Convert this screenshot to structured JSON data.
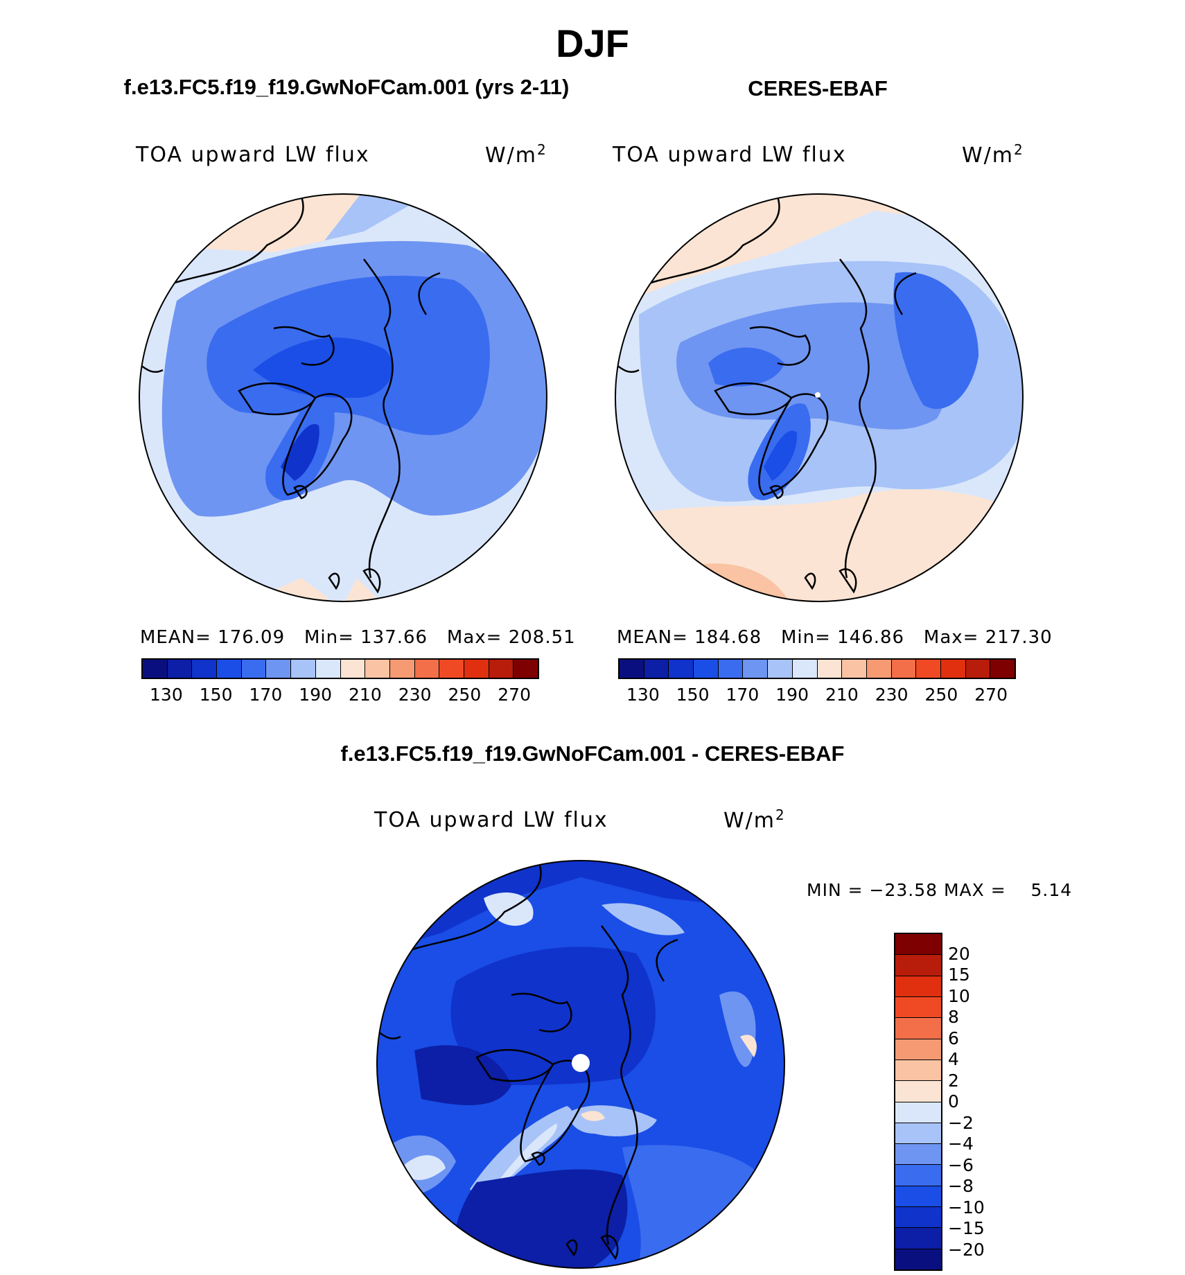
{
  "figure": {
    "title": "DJF",
    "units": "W/m",
    "units_sup": "2"
  },
  "panels": [
    {
      "id": "model",
      "header": "f.e13.FC5.f19_f19.GwNoFCam.001 (yrs 2-11)",
      "variable": "TOA upward LW flux",
      "stats": {
        "mean_label": "MEAN=",
        "mean": "176.09",
        "min_label": "Min=",
        "min": "137.66",
        "max_label": "Max=",
        "max": "208.51"
      }
    },
    {
      "id": "obs",
      "header": "CERES-EBAF",
      "variable": "TOA upward LW flux",
      "stats": {
        "mean_label": "MEAN=",
        "mean": "184.68",
        "min_label": "Min=",
        "min": "146.86",
        "max_label": "Max=",
        "max": "217.30"
      }
    }
  ],
  "diff_panel": {
    "header": "f.e13.FC5.f19_f19.GwNoFCam.001 - CERES-EBAF",
    "variable": "TOA upward LW flux",
    "min_label": "MIN =",
    "min": "−23.58",
    "max_label": "MAX =",
    "max": "5.14"
  },
  "colorbar_abs": {
    "colors": [
      "#0a0f80",
      "#0c1fa6",
      "#1033cc",
      "#1a4ee6",
      "#3a6cf0",
      "#6f95f2",
      "#a8c3f7",
      "#dae7fb",
      "#fbe4d3",
      "#f9c3a4",
      "#f59a73",
      "#f26f49",
      "#f04a24",
      "#e0300f",
      "#b81c0a",
      "#7f0000"
    ],
    "tick_labels": [
      "130",
      "150",
      "170",
      "190",
      "210",
      "230",
      "250",
      "270"
    ]
  },
  "colorbar_diff": {
    "colors": [
      "#7f0000",
      "#b81c0a",
      "#e0300f",
      "#f04a24",
      "#f26f49",
      "#f59a73",
      "#f9c3a4",
      "#fbe4d3",
      "#dae7fb",
      "#a8c3f7",
      "#6f95f2",
      "#3a6cf0",
      "#1a4ee6",
      "#1033cc",
      "#0c1fa6",
      "#0a0f80"
    ],
    "tick_labels": [
      "20",
      "15",
      "10",
      "8",
      "6",
      "4",
      "2",
      "0",
      "−2",
      "−4",
      "−6",
      "−8",
      "−10",
      "−15",
      "−20"
    ]
  }
}
